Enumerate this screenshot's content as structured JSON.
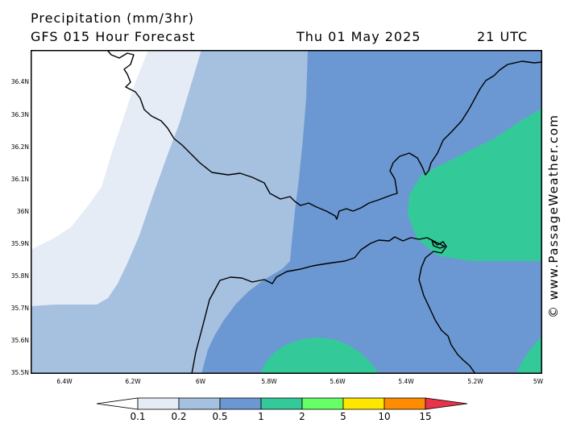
{
  "header": {
    "title": "Precipitation (mm/3hr)",
    "subtitle": "GFS 015 Hour Forecast",
    "datetime": "Thu 01 May 2025",
    "utc": "21 UTC"
  },
  "credit": "© www.PassageWeather.com",
  "map": {
    "lat_ticks": [
      "36.4N",
      "36.3N",
      "36.2N",
      "36.1N",
      "36N",
      "35.9N",
      "35.8N",
      "35.7N",
      "35.6N",
      "35.5N"
    ],
    "lon_ticks": [
      "6.4W",
      "6.2W",
      "6W",
      "5.8W",
      "5.6W",
      "5.4W",
      "5.2W",
      "5W"
    ],
    "extent": {
      "lon_min": -6.5,
      "lon_max": -5.0,
      "lat_min": 35.5,
      "lat_max": 36.5
    },
    "coastline_color": "#000000"
  },
  "legend": {
    "labels": [
      "0.1",
      "0.2",
      "0.5",
      "1",
      "2",
      "5",
      "10",
      "15"
    ],
    "colors": [
      "#ffffff",
      "#e5ecf6",
      "#a6c0e0",
      "#6b98d2",
      "#34c999",
      "#66ff66",
      "#ffe600",
      "#ff8c00",
      "#e8344a"
    ]
  }
}
